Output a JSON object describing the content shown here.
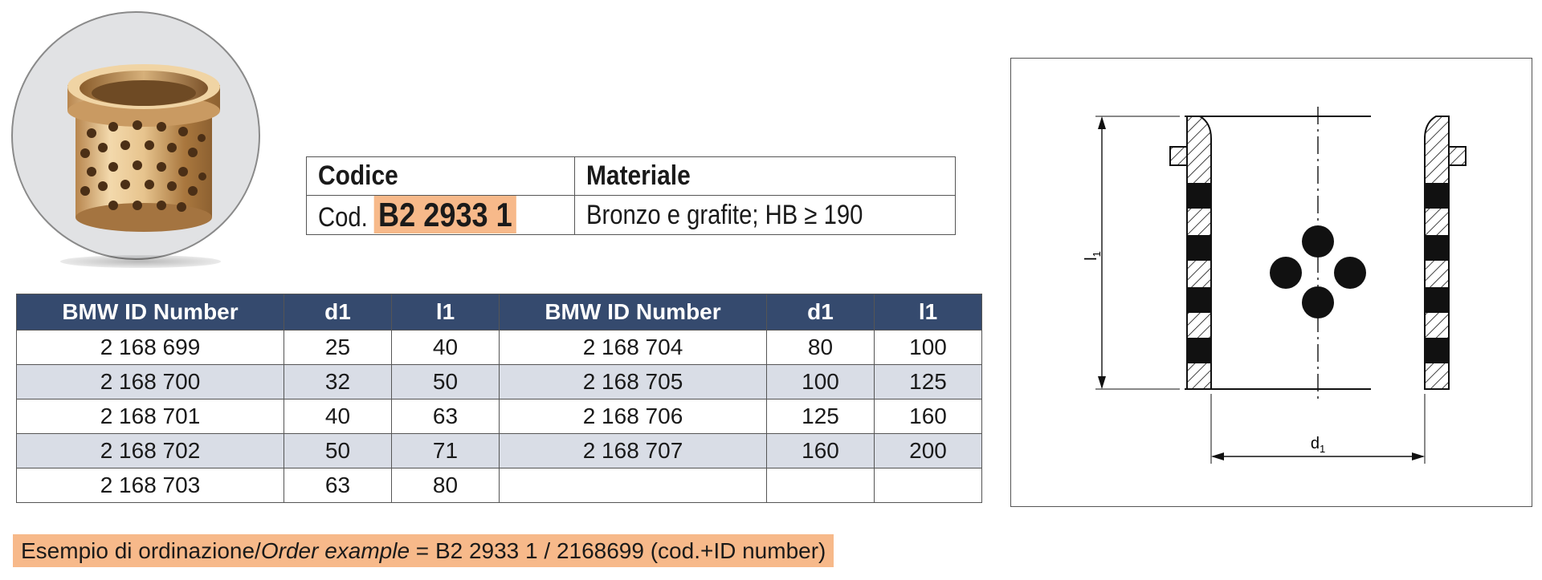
{
  "code_table": {
    "header_code": "Codice",
    "header_material": "Materiale",
    "code_prefix": "Cod.",
    "code_value": "B2 2933 1",
    "material_value": "Bronzo e grafite; HB ≥ 190"
  },
  "data_table": {
    "headers": [
      "BMW ID Number",
      "d1",
      "l1",
      "BMW ID Number",
      "d1",
      "l1"
    ],
    "rows": [
      [
        "2 168 699",
        "25",
        "40",
        "2 168 704",
        "80",
        "100"
      ],
      [
        "2 168 700",
        "32",
        "50",
        "2 168 705",
        "100",
        "125"
      ],
      [
        "2 168 701",
        "40",
        "63",
        "2 168 706",
        "125",
        "160"
      ],
      [
        "2 168 702",
        "50",
        "71",
        "2 168 707",
        "160",
        "200"
      ],
      [
        "2 168 703",
        "63",
        "80",
        "",
        "",
        ""
      ]
    ]
  },
  "order_example": {
    "label_it": "Esempio di ordinazione/",
    "label_en": "Order example",
    "value": " = B2 2933 1 / 2168699 (cod.+ID number)"
  },
  "drawing": {
    "dim_length": "l",
    "dim_length_sub": "1",
    "dim_diameter": "d",
    "dim_diameter_sub": "1"
  },
  "colors": {
    "header_bg": "#354a6e",
    "row_alt_bg": "#d9dde6",
    "highlight": "#f7b98a"
  }
}
